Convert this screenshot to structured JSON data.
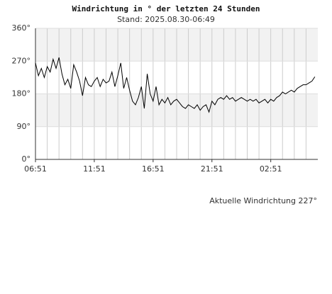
{
  "chart_data": {
    "type": "line",
    "title": "Windrichtung in ° der letzten 24 Stunden",
    "subtitle": "Stand: 2025.08.30-06:49",
    "annotation": "Aktuelle Windrichtung 227°",
    "color": "#000000",
    "grid": true,
    "x": [
      "06:51",
      "07:06",
      "07:21",
      "07:36",
      "07:51",
      "08:06",
      "08:21",
      "08:36",
      "08:51",
      "09:06",
      "09:21",
      "09:36",
      "09:51",
      "10:06",
      "10:21",
      "10:36",
      "10:51",
      "11:06",
      "11:21",
      "11:36",
      "11:51",
      "12:06",
      "12:21",
      "12:36",
      "12:51",
      "13:06",
      "13:21",
      "13:36",
      "13:51",
      "14:06",
      "14:21",
      "14:36",
      "14:51",
      "15:06",
      "15:21",
      "15:36",
      "15:51",
      "16:06",
      "16:21",
      "16:36",
      "16:51",
      "17:06",
      "17:21",
      "17:36",
      "17:51",
      "18:06",
      "18:21",
      "18:36",
      "18:51",
      "19:06",
      "19:21",
      "19:36",
      "19:51",
      "20:06",
      "20:21",
      "20:36",
      "20:51",
      "21:06",
      "21:21",
      "21:36",
      "21:51",
      "22:06",
      "22:21",
      "22:36",
      "22:51",
      "23:06",
      "23:21",
      "23:36",
      "23:51",
      "00:06",
      "00:21",
      "00:36",
      "00:51",
      "01:06",
      "01:21",
      "01:36",
      "01:51",
      "02:06",
      "02:21",
      "02:36",
      "02:51",
      "03:06",
      "03:21",
      "03:36",
      "03:51",
      "04:06",
      "04:21",
      "04:36",
      "04:51",
      "05:06",
      "05:21",
      "05:36",
      "05:51",
      "06:06",
      "06:21",
      "06:36"
    ],
    "values": [
      265,
      230,
      250,
      225,
      255,
      240,
      275,
      250,
      280,
      235,
      205,
      220,
      195,
      260,
      240,
      215,
      175,
      225,
      205,
      200,
      215,
      225,
      200,
      220,
      210,
      215,
      240,
      200,
      230,
      265,
      195,
      225,
      190,
      160,
      150,
      170,
      200,
      140,
      235,
      180,
      160,
      200,
      150,
      165,
      155,
      170,
      150,
      160,
      165,
      155,
      145,
      140,
      150,
      145,
      140,
      150,
      135,
      145,
      150,
      130,
      160,
      150,
      165,
      170,
      165,
      175,
      165,
      170,
      160,
      165,
      170,
      165,
      160,
      165,
      160,
      165,
      155,
      160,
      165,
      155,
      165,
      160,
      170,
      175,
      185,
      180,
      185,
      190,
      185,
      195,
      200,
      205,
      205,
      210,
      215,
      227
    ],
    "xlim": [
      "06:51",
      "06:51"
    ],
    "xticks": [
      "06:51",
      "11:51",
      "16:51",
      "21:51",
      "02:51"
    ],
    "ylim": [
      0,
      360
    ],
    "yticks": [
      {
        "value": 0,
        "label": "0°"
      },
      {
        "value": 90,
        "label": "90°"
      },
      {
        "value": 180,
        "label": "180°"
      },
      {
        "value": 270,
        "label": "270°"
      },
      {
        "value": 360,
        "label": "360°"
      }
    ]
  }
}
